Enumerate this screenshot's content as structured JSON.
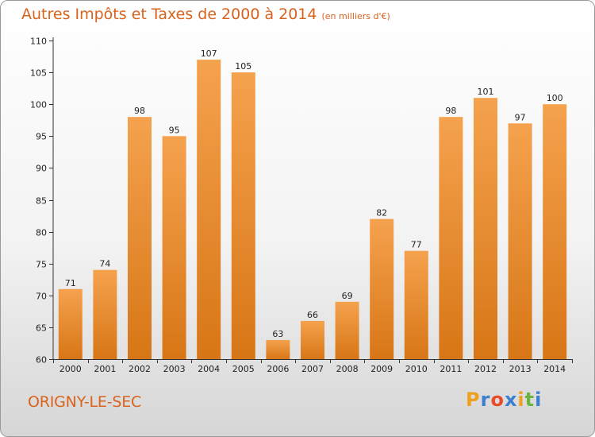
{
  "title": "Autres Impôts et Taxes de 2000 à 2014",
  "unit_label": "(en milliers d'€)",
  "commune": "ORIGNY-LE-SEC",
  "brand": {
    "letters": [
      "P",
      "r",
      "o",
      "x",
      "i",
      "t",
      "i"
    ],
    "colors": [
      "#f0a020",
      "#3a7fd0",
      "#e84d2a",
      "#3a7fd0",
      "#f0a020",
      "#6cb33f",
      "#3a7fd0"
    ]
  },
  "colors": {
    "accent": "#d9621c",
    "bar_top": "#f5a24e",
    "bar_bottom": "#d77616"
  },
  "chart_data": {
    "type": "bar",
    "categories": [
      "2000",
      "2001",
      "2002",
      "2003",
      "2004",
      "2005",
      "2006",
      "2007",
      "2008",
      "2009",
      "2010",
      "2011",
      "2012",
      "2013",
      "2014"
    ],
    "values": [
      71,
      74,
      98,
      95,
      107,
      105,
      63,
      66,
      69,
      82,
      77,
      98,
      101,
      97,
      100
    ],
    "value_labels": [
      "71",
      "74",
      "98",
      "95",
      "107",
      "105",
      "63",
      "66",
      "69",
      "82",
      "77",
      "98",
      "101",
      "97",
      "100"
    ],
    "yticks": [
      "60",
      "65",
      "70",
      "75",
      "80",
      "85",
      "90",
      "95",
      "100",
      "105",
      "110"
    ],
    "ylim": [
      60,
      110
    ],
    "grid": false
  }
}
